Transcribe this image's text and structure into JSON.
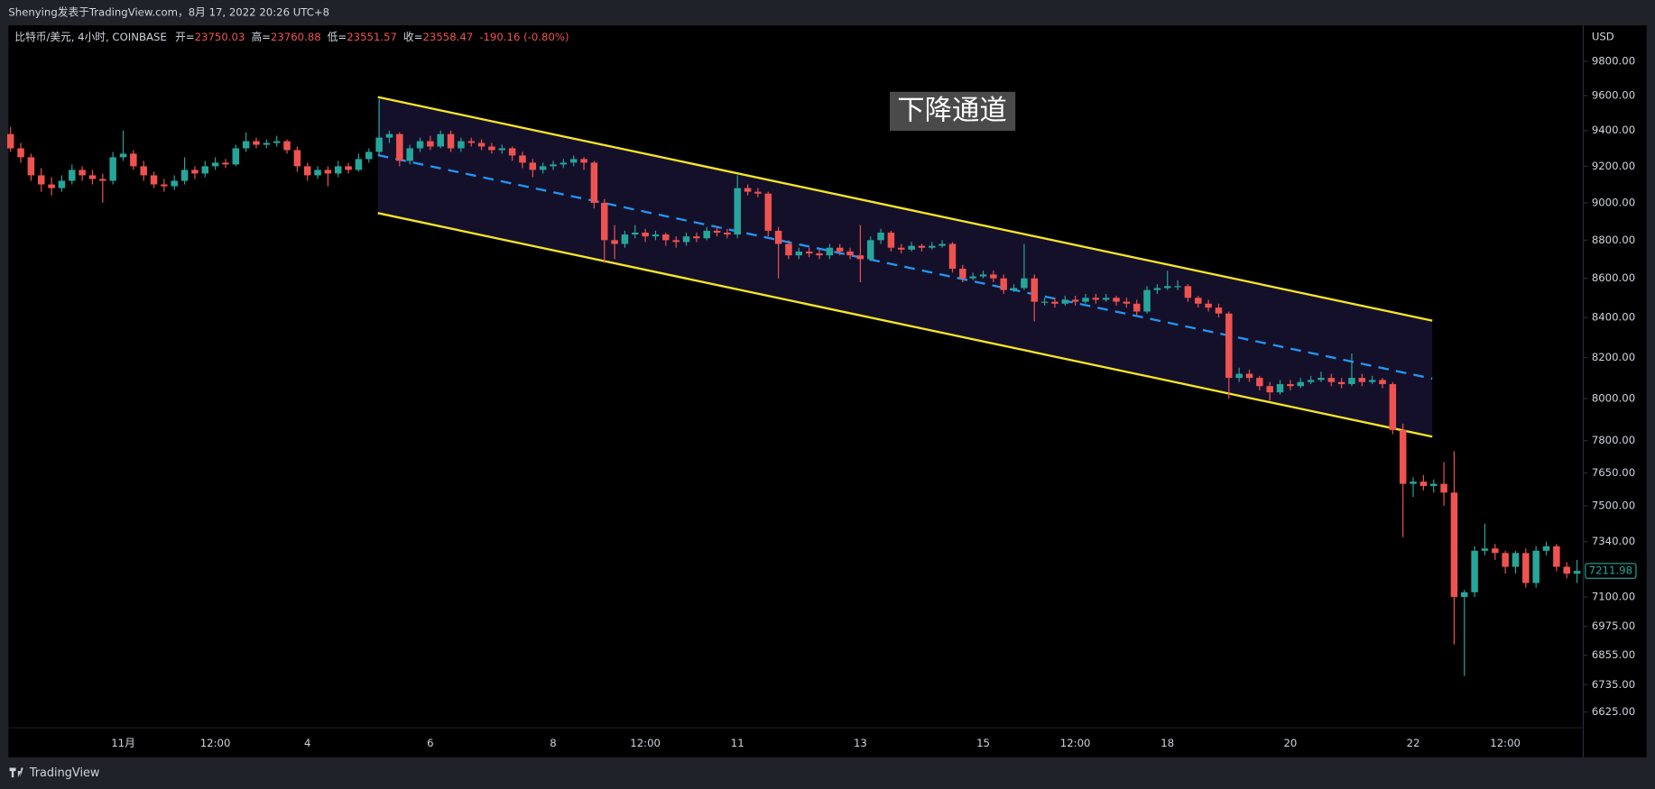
{
  "header": "Shenying发表于TradingView.com，8月 17, 2022 20:26 UTC+8",
  "footer": "TradingView",
  "chart_data": {
    "type": "candlestick",
    "symbol": "比特币/美元, 4小时, COINBASE",
    "legend_fields": [
      {
        "label": "开=",
        "value": 23750.03
      },
      {
        "label": "高=",
        "value": 23760.88
      },
      {
        "label": "低=",
        "value": 23551.57
      },
      {
        "label": "收=",
        "value": 23558.47
      }
    ],
    "change": "-190.16 (-0.80%)",
    "currency": "USD",
    "annotation": "下降通道",
    "up_color": "#26a69a",
    "down_color": "#ef5350",
    "log_scale": true,
    "grid": false,
    "ylim": [
      6451,
      10014
    ],
    "yticks": [
      {
        "value": 9800,
        "label": "9800.00"
      },
      {
        "value": 9600,
        "label": "9600.00"
      },
      {
        "value": 9400,
        "label": "9400.00"
      },
      {
        "value": 9200,
        "label": "9200.00"
      },
      {
        "value": 9000,
        "label": "9000.00"
      },
      {
        "value": 8800,
        "label": "8800.00"
      },
      {
        "value": 8600,
        "label": "8600.00"
      },
      {
        "value": 8400,
        "label": "8400.00"
      },
      {
        "value": 8200,
        "label": "8200.00"
      },
      {
        "value": 8000,
        "label": "8000.00"
      },
      {
        "value": 7800,
        "label": "7800.00"
      },
      {
        "value": 7650,
        "label": "7650.00"
      },
      {
        "value": 7500,
        "label": "7500.00"
      },
      {
        "value": 7340,
        "label": "7340.00"
      },
      {
        "value": 7100,
        "label": "7100.00"
      },
      {
        "value": 6975,
        "label": "6975.00"
      },
      {
        "value": 6855,
        "label": "6855.00"
      },
      {
        "value": 6735,
        "label": "6735.00"
      },
      {
        "value": 6625,
        "label": "6625.00"
      }
    ],
    "categories": [
      null,
      null,
      null,
      null,
      null,
      null,
      null,
      null,
      null,
      null,
      null,
      "11月",
      null,
      null,
      null,
      null,
      null,
      null,
      null,
      null,
      "12:00",
      null,
      null,
      null,
      null,
      null,
      null,
      null,
      null,
      "4",
      null,
      null,
      null,
      null,
      null,
      null,
      null,
      null,
      null,
      null,
      null,
      "6",
      null,
      null,
      null,
      null,
      null,
      null,
      null,
      null,
      null,
      null,
      null,
      "8",
      null,
      null,
      null,
      null,
      null,
      null,
      null,
      null,
      "12:00",
      null,
      null,
      null,
      null,
      null,
      null,
      null,
      null,
      "11",
      null,
      null,
      null,
      null,
      null,
      null,
      null,
      null,
      null,
      null,
      null,
      "13",
      null,
      null,
      null,
      null,
      null,
      null,
      null,
      null,
      null,
      null,
      null,
      "15",
      null,
      null,
      null,
      null,
      null,
      null,
      null,
      null,
      "12:00",
      null,
      null,
      null,
      null,
      null,
      null,
      null,
      null,
      "18",
      null,
      null,
      null,
      null,
      null,
      null,
      null,
      null,
      null,
      null,
      null,
      "20",
      null,
      null,
      null,
      null,
      null,
      null,
      null,
      null,
      null,
      null,
      null,
      "22",
      null,
      null,
      null,
      null,
      null,
      null,
      null,
      null,
      "12:00",
      null,
      null,
      null,
      null,
      null,
      null,
      null
    ],
    "ohlc": [
      [
        9380,
        9420,
        9280,
        9300
      ],
      [
        9300,
        9330,
        9220,
        9250
      ],
      [
        9250,
        9270,
        9120,
        9150
      ],
      [
        9150,
        9190,
        9060,
        9100
      ],
      [
        9100,
        9140,
        9040,
        9080
      ],
      [
        9080,
        9150,
        9060,
        9120
      ],
      [
        9120,
        9210,
        9100,
        9180
      ],
      [
        9180,
        9200,
        9120,
        9150
      ],
      [
        9150,
        9180,
        9100,
        9130
      ],
      [
        9130,
        9160,
        9000,
        9120
      ],
      [
        9120,
        9280,
        9100,
        9250
      ],
      [
        9250,
        9400,
        9230,
        9270
      ],
      [
        9270,
        9290,
        9180,
        9200
      ],
      [
        9200,
        9230,
        9120,
        9150
      ],
      [
        9150,
        9170,
        9080,
        9100
      ],
      [
        9100,
        9130,
        9060,
        9090
      ],
      [
        9090,
        9150,
        9070,
        9120
      ],
      [
        9120,
        9250,
        9100,
        9180
      ],
      [
        9180,
        9200,
        9130,
        9160
      ],
      [
        9160,
        9230,
        9140,
        9200
      ],
      [
        9200,
        9250,
        9180,
        9220
      ],
      [
        9220,
        9240,
        9190,
        9210
      ],
      [
        9210,
        9320,
        9200,
        9300
      ],
      [
        9300,
        9390,
        9280,
        9340
      ],
      [
        9340,
        9360,
        9300,
        9320
      ],
      [
        9320,
        9350,
        9300,
        9330
      ],
      [
        9330,
        9370,
        9310,
        9340
      ],
      [
        9340,
        9350,
        9270,
        9290
      ],
      [
        9290,
        9310,
        9170,
        9200
      ],
      [
        9200,
        9220,
        9120,
        9150
      ],
      [
        9150,
        9200,
        9130,
        9180
      ],
      [
        9180,
        9200,
        9090,
        9160
      ],
      [
        9160,
        9230,
        9140,
        9200
      ],
      [
        9200,
        9220,
        9160,
        9180
      ],
      [
        9180,
        9270,
        9170,
        9240
      ],
      [
        9240,
        9300,
        9220,
        9280
      ],
      [
        9280,
        9580,
        9260,
        9360
      ],
      [
        9360,
        9400,
        9330,
        9380
      ],
      [
        9380,
        9390,
        9200,
        9230
      ],
      [
        9230,
        9320,
        9210,
        9300
      ],
      [
        9300,
        9360,
        9280,
        9340
      ],
      [
        9340,
        9370,
        9290,
        9310
      ],
      [
        9310,
        9400,
        9300,
        9380
      ],
      [
        9380,
        9400,
        9280,
        9300
      ],
      [
        9300,
        9360,
        9280,
        9340
      ],
      [
        9340,
        9360,
        9310,
        9330
      ],
      [
        9330,
        9350,
        9290,
        9310
      ],
      [
        9310,
        9330,
        9270,
        9290
      ],
      [
        9290,
        9320,
        9270,
        9300
      ],
      [
        9300,
        9310,
        9230,
        9260
      ],
      [
        9260,
        9280,
        9190,
        9220
      ],
      [
        9220,
        9240,
        9140,
        9180
      ],
      [
        9180,
        9220,
        9160,
        9200
      ],
      [
        9200,
        9230,
        9180,
        9210
      ],
      [
        9210,
        9240,
        9190,
        9220
      ],
      [
        9220,
        9260,
        9200,
        9240
      ],
      [
        9240,
        9250,
        9180,
        9220
      ],
      [
        9220,
        9230,
        8970,
        9000
      ],
      [
        9000,
        9020,
        8680,
        8800
      ],
      [
        8800,
        8880,
        8700,
        8780
      ],
      [
        8780,
        8850,
        8760,
        8830
      ],
      [
        8830,
        8880,
        8810,
        8840
      ],
      [
        8840,
        8860,
        8790,
        8820
      ],
      [
        8820,
        8850,
        8800,
        8830
      ],
      [
        8830,
        8840,
        8770,
        8800
      ],
      [
        8800,
        8820,
        8760,
        8790
      ],
      [
        8790,
        8840,
        8770,
        8820
      ],
      [
        8820,
        8840,
        8790,
        8810
      ],
      [
        8810,
        8870,
        8800,
        8850
      ],
      [
        8850,
        8870,
        8820,
        8840
      ],
      [
        8840,
        8860,
        8810,
        8830
      ],
      [
        8830,
        9150,
        8810,
        9080
      ],
      [
        9080,
        9100,
        9040,
        9060
      ],
      [
        9060,
        9080,
        9030,
        9050
      ],
      [
        9050,
        9060,
        8820,
        8850
      ],
      [
        8850,
        8870,
        8600,
        8780
      ],
      [
        8780,
        8800,
        8700,
        8720
      ],
      [
        8720,
        8760,
        8700,
        8740
      ],
      [
        8740,
        8760,
        8710,
        8730
      ],
      [
        8730,
        8750,
        8700,
        8720
      ],
      [
        8720,
        8780,
        8700,
        8760
      ],
      [
        8760,
        8780,
        8720,
        8740
      ],
      [
        8740,
        8760,
        8700,
        8720
      ],
      [
        8720,
        8880,
        8580,
        8700
      ],
      [
        8700,
        8820,
        8690,
        8800
      ],
      [
        8800,
        8860,
        8780,
        8840
      ],
      [
        8840,
        8850,
        8740,
        8760
      ],
      [
        8760,
        8780,
        8730,
        8750
      ],
      [
        8750,
        8790,
        8740,
        8770
      ],
      [
        8770,
        8780,
        8740,
        8760
      ],
      [
        8760,
        8790,
        8750,
        8770
      ],
      [
        8770,
        8800,
        8760,
        8780
      ],
      [
        8780,
        8790,
        8630,
        8650
      ],
      [
        8650,
        8670,
        8580,
        8600
      ],
      [
        8600,
        8630,
        8590,
        8610
      ],
      [
        8610,
        8640,
        8600,
        8620
      ],
      [
        8620,
        8640,
        8580,
        8600
      ],
      [
        8600,
        8620,
        8520,
        8540
      ],
      [
        8540,
        8570,
        8530,
        8550
      ],
      [
        8550,
        8780,
        8540,
        8600
      ],
      [
        8600,
        8620,
        8380,
        8480
      ],
      [
        8480,
        8500,
        8460,
        8480
      ],
      [
        8480,
        8500,
        8450,
        8470
      ],
      [
        8470,
        8510,
        8460,
        8490
      ],
      [
        8490,
        8510,
        8460,
        8480
      ],
      [
        8480,
        8520,
        8470,
        8500
      ],
      [
        8500,
        8520,
        8470,
        8490
      ],
      [
        8490,
        8520,
        8480,
        8500
      ],
      [
        8500,
        8510,
        8460,
        8480
      ],
      [
        8480,
        8500,
        8450,
        8470
      ],
      [
        8470,
        8490,
        8410,
        8430
      ],
      [
        8430,
        8560,
        8420,
        8540
      ],
      [
        8540,
        8570,
        8520,
        8550
      ],
      [
        8550,
        8640,
        8540,
        8560
      ],
      [
        8560,
        8590,
        8540,
        8560
      ],
      [
        8560,
        8570,
        8480,
        8500
      ],
      [
        8500,
        8510,
        8450,
        8470
      ],
      [
        8470,
        8490,
        8430,
        8450
      ],
      [
        8450,
        8470,
        8400,
        8420
      ],
      [
        8420,
        8430,
        8000,
        8100
      ],
      [
        8100,
        8150,
        8080,
        8120
      ],
      [
        8120,
        8140,
        8080,
        8100
      ],
      [
        8100,
        8110,
        8040,
        8060
      ],
      [
        8060,
        8080,
        7990,
        8030
      ],
      [
        8030,
        8090,
        8020,
        8070
      ],
      [
        8070,
        8090,
        8040,
        8060
      ],
      [
        8060,
        8100,
        8050,
        8080
      ],
      [
        8080,
        8110,
        8070,
        8090
      ],
      [
        8090,
        8130,
        8080,
        8100
      ],
      [
        8100,
        8120,
        8060,
        8080
      ],
      [
        8080,
        8100,
        8050,
        8070
      ],
      [
        8070,
        8220,
        8060,
        8100
      ],
      [
        8100,
        8120,
        8060,
        8080
      ],
      [
        8080,
        8110,
        8070,
        8090
      ],
      [
        8090,
        8100,
        8050,
        8070
      ],
      [
        8070,
        8080,
        7830,
        7850
      ],
      [
        7850,
        7880,
        7360,
        7600
      ],
      [
        7600,
        7630,
        7540,
        7610
      ],
      [
        7610,
        7640,
        7570,
        7590
      ],
      [
        7590,
        7620,
        7560,
        7600
      ],
      [
        7600,
        7700,
        7500,
        7560
      ],
      [
        7560,
        7750,
        6900,
        7100
      ],
      [
        7100,
        7130,
        6770,
        7120
      ],
      [
        7120,
        7320,
        7100,
        7300
      ],
      [
        7300,
        7420,
        7280,
        7310
      ],
      [
        7310,
        7330,
        7260,
        7290
      ],
      [
        7290,
        7300,
        7200,
        7230
      ],
      [
        7230,
        7300,
        7200,
        7290
      ],
      [
        7290,
        7310,
        7140,
        7160
      ],
      [
        7160,
        7320,
        7140,
        7300
      ],
      [
        7300,
        7340,
        7280,
        7320
      ],
      [
        7320,
        7330,
        7210,
        7230
      ],
      [
        7230,
        7250,
        7180,
        7200
      ],
      [
        7200,
        7260,
        7160,
        7211.98
      ]
    ]
  }
}
